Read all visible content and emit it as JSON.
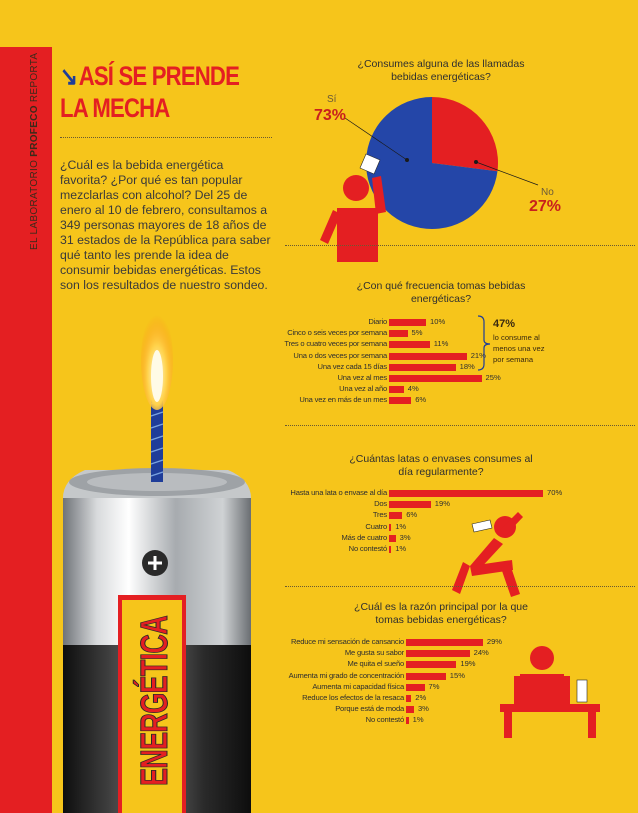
{
  "side": {
    "prefix": "EL LABORATORIO ",
    "brand": "PROFECO",
    "suffix": " REPORTA"
  },
  "headline": {
    "arrow": "↘",
    "line1": "ASÍ SE PRENDE",
    "line2": "LA MECHA"
  },
  "intro": "¿Cuál es la bebida energética favorita? ¿Por qué es tan popular mezclarlas con alcohol? Del 25 de enero al 10 de febrero, consultamos a 349 personas mayores de 18 años de 31 estados de la República para saber qué tanto les prende la idea de consumir bebidas energéticas. Estos son los resultados de nuestro sondeo.",
  "can_label": "ENERGÉTICA",
  "colors": {
    "background": "#f6c51b",
    "red": "#e41f22",
    "blue": "#2446a8"
  },
  "chart_data": [
    {
      "type": "pie",
      "title": "¿Consumes alguna de las llamadas bebidas energéticas?",
      "labels": [
        "Sí",
        "No"
      ],
      "values": [
        73,
        27
      ],
      "value_labels": [
        "73%",
        "27%"
      ],
      "colors": [
        "#2446a8",
        "#e41f22"
      ]
    },
    {
      "type": "bar",
      "orientation": "horizontal",
      "title": "¿Con qué frecuencia tomas bebidas energéticas?",
      "categories": [
        "Diario",
        "Cinco o seis veces por semana",
        "Tres o cuatro veces por semana",
        "Una o dos veces por semana",
        "Una vez cada 15 días",
        "Una vez al mes",
        "Una vez al año",
        "Una vez en más de un mes"
      ],
      "values": [
        10,
        5,
        11,
        21,
        18,
        25,
        4,
        6
      ],
      "annotation": {
        "value": "47%",
        "text": "lo consume al menos una vez por semana"
      }
    },
    {
      "type": "bar",
      "orientation": "horizontal",
      "title": "¿Cuántas latas o envases consumes al día regularmente?",
      "categories": [
        "Hasta una lata o envase al día",
        "Dos",
        "Tres",
        "Cuatro",
        "Más de cuatro",
        "No contestó"
      ],
      "values": [
        70,
        19,
        6,
        1,
        3,
        1
      ]
    },
    {
      "type": "bar",
      "orientation": "horizontal",
      "title": "¿Cuál es la razón principal por la que tomas bebidas energéticas?",
      "categories": [
        "Reduce mi sensación de cansancio",
        "Me gusta su sabor",
        "Me quita el sueño",
        "Aumenta mi grado de concentración",
        "Aumenta mi capacidad física",
        "Reduce los efectos de la resaca",
        "Porque está de moda",
        "No contestó"
      ],
      "values": [
        29,
        24,
        19,
        15,
        7,
        2,
        3,
        1
      ]
    }
  ]
}
